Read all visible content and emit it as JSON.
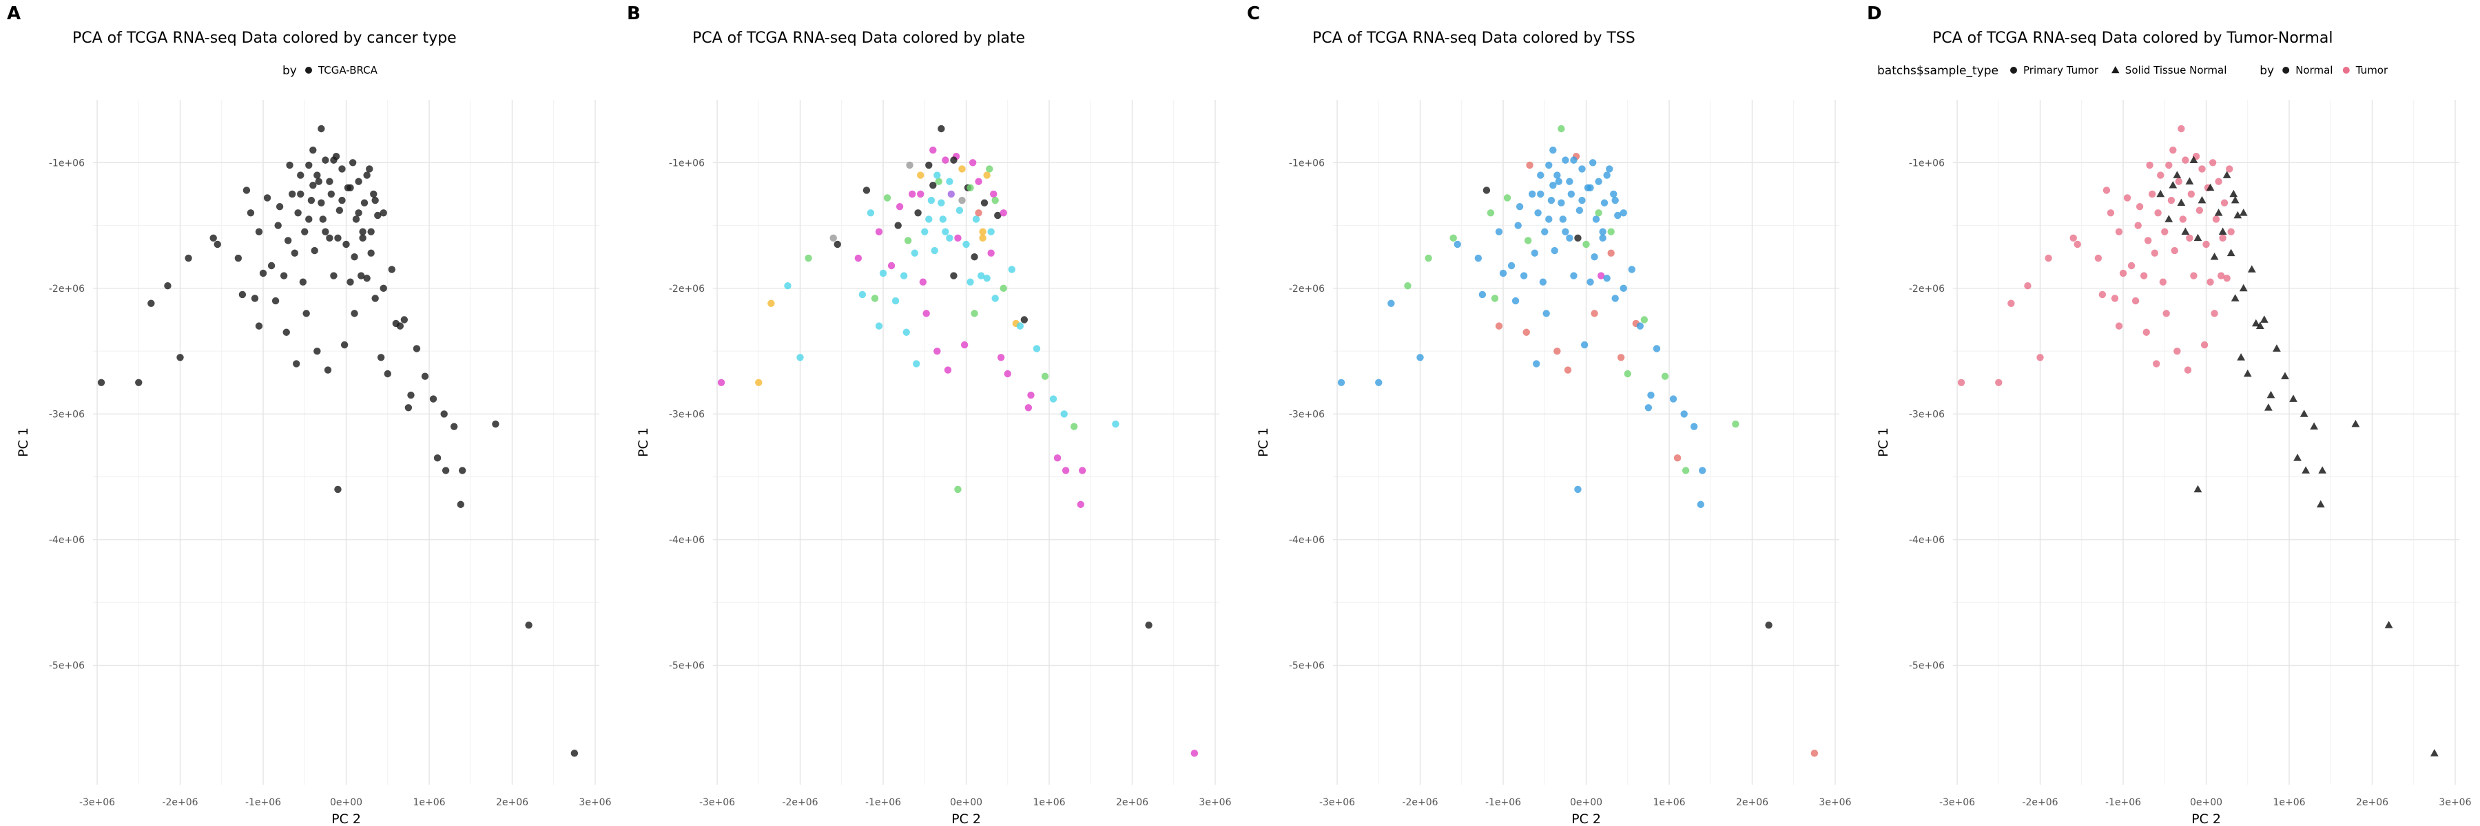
{
  "chart_data": [
    {
      "letter": "A",
      "type": "scatter",
      "title": "PCA of TCGA RNA-seq Data colored by cancer type",
      "xlabel": "PC 2",
      "ylabel": "PC 1",
      "xlim": [
        -3050000.0,
        3050000.0
      ],
      "ylim": [
        -5950000.0,
        -500000.0
      ],
      "x_ticks": [
        -3000000.0,
        -2000000.0,
        -1000000.0,
        0,
        1000000.0,
        2000000.0,
        3000000.0
      ],
      "x_tick_labels": [
        "-3e+06",
        "-2e+06",
        "-1e+06",
        "0e+00",
        "1e+06",
        "2e+06",
        "3e+06"
      ],
      "y_ticks": [
        -1000000.0,
        -2000000.0,
        -3000000.0,
        -4000000.0,
        -5000000.0
      ],
      "y_tick_labels": [
        "-1e+06",
        "-2e+06",
        "-3e+06",
        "-4e+06",
        "-5e+06"
      ],
      "grid": true,
      "legend": {
        "position": "top",
        "groups": [
          {
            "title": "by",
            "entries": [
              {
                "label": "TCGA-BRCA",
                "color": "#1a1a1a",
                "shape": "circle"
              }
            ]
          }
        ]
      },
      "series_colors": [
        "#1a1a1a"
      ],
      "series_shapes": []
    },
    {
      "letter": "B",
      "type": "scatter",
      "title": "PCA of TCGA RNA-seq Data colored by plate",
      "xlabel": "PC 2",
      "ylabel": "PC 1",
      "xlim": [
        -3050000.0,
        3050000.0
      ],
      "ylim": [
        -5950000.0,
        -500000.0
      ],
      "x_ticks": [
        -3000000.0,
        -2000000.0,
        -1000000.0,
        0,
        1000000.0,
        2000000.0,
        3000000.0
      ],
      "x_tick_labels": [
        "-3e+06",
        "-2e+06",
        "-1e+06",
        "0e+00",
        "1e+06",
        "2e+06",
        "3e+06"
      ],
      "y_ticks": [
        -1000000.0,
        -2000000.0,
        -3000000.0,
        -4000000.0,
        -5000000.0
      ],
      "y_tick_labels": [
        "-1e+06",
        "-2e+06",
        "-3e+06",
        "-4e+06",
        "-5e+06"
      ],
      "grid": true,
      "legend": null,
      "series_colors": [
        "#e040c8",
        "#4fd6e8",
        "#1a1a1a",
        "#6fd46f",
        "#f5b933",
        "#999999",
        "#a061e0",
        "#e6706a"
      ],
      "series_shapes": []
    },
    {
      "letter": "C",
      "type": "scatter",
      "title": "PCA of TCGA RNA-seq Data colored by TSS",
      "xlabel": "PC 2",
      "ylabel": "PC 1",
      "xlim": [
        -3050000.0,
        3050000.0
      ],
      "ylim": [
        -5950000.0,
        -500000.0
      ],
      "x_ticks": [
        -3000000.0,
        -2000000.0,
        -1000000.0,
        0,
        1000000.0,
        2000000.0,
        3000000.0
      ],
      "x_tick_labels": [
        "-3e+06",
        "-2e+06",
        "-1e+06",
        "0e+00",
        "1e+06",
        "2e+06",
        "3e+06"
      ],
      "y_ticks": [
        -1000000.0,
        -2000000.0,
        -3000000.0,
        -4000000.0,
        -5000000.0
      ],
      "y_tick_labels": [
        "-1e+06",
        "-2e+06",
        "-3e+06",
        "-4e+06",
        "-5e+06"
      ],
      "grid": true,
      "legend": null,
      "series_colors": [
        "#3a9ee0",
        "#3a9ee0",
        "#3a9ee0",
        "#6fd46f",
        "#e6706a",
        "#1a1a1a",
        "#e040c8",
        "#4fd6e8"
      ],
      "series_shapes": []
    },
    {
      "letter": "D",
      "type": "scatter",
      "title": "PCA of TCGA RNA-seq Data colored by Tumor-Normal",
      "xlabel": "PC 2",
      "ylabel": "PC 1",
      "xlim": [
        -3050000.0,
        3050000.0
      ],
      "ylim": [
        -5950000.0,
        -500000.0
      ],
      "x_ticks": [
        -3000000.0,
        -2000000.0,
        -1000000.0,
        0,
        1000000.0,
        2000000.0,
        3000000.0
      ],
      "x_tick_labels": [
        "-3e+06",
        "-2e+06",
        "-1e+06",
        "0e+00",
        "1e+06",
        "2e+06",
        "3e+06"
      ],
      "y_ticks": [
        -1000000.0,
        -2000000.0,
        -3000000.0,
        -4000000.0,
        -5000000.0
      ],
      "y_tick_labels": [
        "-1e+06",
        "-2e+06",
        "-3e+06",
        "-4e+06",
        "-5e+06"
      ],
      "grid": true,
      "legend": {
        "position": "top",
        "groups": [
          {
            "title": "batchs$sample_type",
            "entries": [
              {
                "label": "Primary Tumor",
                "color": "#1a1a1a",
                "shape": "circle"
              },
              {
                "label": "Solid Tissue Normal",
                "color": "#1a1a1a",
                "shape": "triangle"
              }
            ]
          },
          {
            "title": "by",
            "entries": [
              {
                "label": "Normal",
                "color": "#1a1a1a",
                "shape": "circle"
              },
              {
                "label": "Tumor",
                "color": "#e8708a",
                "shape": "circle"
              }
            ]
          }
        ]
      },
      "series_colors": [
        "#e8708a",
        "#1a1a1a"
      ],
      "series_shapes": [
        "circle",
        "triangle"
      ]
    }
  ],
  "points": [
    [
      -2950000.0,
      -2750000.0,
      0
    ],
    [
      -2500000.0,
      -2750000.0,
      0
    ],
    [
      -2350000.0,
      -2120000.0,
      0
    ],
    [
      -2150000.0,
      -1980000.0,
      0
    ],
    [
      -2000000.0,
      -2550000.0,
      0
    ],
    [
      -1900000.0,
      -1760000.0,
      0
    ],
    [
      -1600000.0,
      -1600000.0,
      0
    ],
    [
      -1550000.0,
      -1650000.0,
      0
    ],
    [
      -1300000.0,
      -1760000.0,
      0
    ],
    [
      -1250000.0,
      -2050000.0,
      0
    ],
    [
      -1200000.0,
      -1220000.0,
      0
    ],
    [
      -1150000.0,
      -1400000.0,
      0
    ],
    [
      -1100000.0,
      -2080000.0,
      0
    ],
    [
      -1050000.0,
      -2300000.0,
      0
    ],
    [
      -1050000.0,
      -1550000.0,
      0
    ],
    [
      -1000000.0,
      -1880000.0,
      0
    ],
    [
      -950000.0,
      -1280000.0,
      0
    ],
    [
      -900000.0,
      -1820000.0,
      0
    ],
    [
      -850000.0,
      -2100000.0,
      0
    ],
    [
      -820000.0,
      -1500000.0,
      0
    ],
    [
      -800000.0,
      -1350000.0,
      0
    ],
    [
      -750000.0,
      -1900000.0,
      0
    ],
    [
      -720000.0,
      -2350000.0,
      0
    ],
    [
      -700000.0,
      -1620000.0,
      0
    ],
    [
      -680000.0,
      -1020000.0,
      0
    ],
    [
      -650000.0,
      -1250000.0,
      0
    ],
    [
      -620000.0,
      -1720000.0,
      0
    ],
    [
      -600000.0,
      -2600000.0,
      0
    ],
    [
      -580000.0,
      -1400000.0,
      0
    ],
    [
      -550000.0,
      -1100000.0,
      0
    ],
    [
      -520000.0,
      -1950000.0,
      0
    ],
    [
      -500000.0,
      -1550000.0,
      0
    ],
    [
      -480000.0,
      -2200000.0,
      0
    ],
    [
      -450000.0,
      -1020000.0,
      0
    ],
    [
      -420000.0,
      -1300000.0,
      0
    ],
    [
      -400000.0,
      -900000.0,
      0
    ],
    [
      -380000.0,
      -1700000.0,
      0
    ],
    [
      -350000.0,
      -2500000.0,
      0
    ],
    [
      -330000.0,
      -1150000.0,
      0
    ],
    [
      -300000.0,
      -730000.0,
      0
    ],
    [
      -280000.0,
      -1450000.0,
      0
    ],
    [
      -250000.0,
      -980000.0,
      0
    ],
    [
      -220000.0,
      -2650000.0,
      0
    ],
    [
      -200000.0,
      -1600000.0,
      0
    ],
    [
      -180000.0,
      -1250000.0,
      0
    ],
    [
      -150000.0,
      -1900000.0,
      0
    ],
    [
      -120000.0,
      -950000.0,
      0
    ],
    [
      -100000.0,
      -3600000.0,
      0
    ],
    [
      -80000.0,
      -1380000.0,
      0
    ],
    [
      -50000.0,
      -1050000.0,
      0
    ],
    [
      -20000.0,
      -2450000.0,
      0
    ],
    [
      0.0,
      -1650000.0,
      0
    ],
    [
      20000.0,
      -1200000.0,
      0
    ],
    [
      50000.0,
      -1950000.0,
      0
    ],
    [
      80000.0,
      -1000000.0,
      0
    ],
    [
      100000.0,
      -2200000.0,
      0
    ],
    [
      120000.0,
      -1450000.0,
      0
    ],
    [
      150000.0,
      -1150000.0,
      0
    ],
    [
      180000.0,
      -1900000.0,
      0
    ],
    [
      200000.0,
      -1600000.0,
      0
    ],
    [
      220000.0,
      -1320000.0,
      0
    ],
    [
      250000.0,
      -1920000.0,
      0
    ],
    [
      280000.0,
      -1050000.0,
      0
    ],
    [
      300000.0,
      -1550000.0,
      0
    ],
    [
      330000.0,
      -1250000.0,
      0
    ],
    [
      350000.0,
      -2080000.0,
      0
    ],
    [
      380000.0,
      -1420000.0,
      0
    ],
    [
      420000.0,
      -2550000.0,
      0
    ],
    [
      450000.0,
      -2000000.0,
      0
    ],
    [
      500000.0,
      -2680000.0,
      0
    ],
    [
      550000.0,
      -1850000.0,
      0
    ],
    [
      600000.0,
      -2280000.0,
      0
    ],
    [
      650000.0,
      -2300000.0,
      0
    ],
    [
      700000.0,
      -2250000.0,
      0
    ],
    [
      750000.0,
      -2950000.0,
      0
    ],
    [
      780000.0,
      -2850000.0,
      0
    ],
    [
      850000.0,
      -2480000.0,
      0
    ],
    [
      950000.0,
      -2700000.0,
      0
    ],
    [
      1050000.0,
      -2880000.0,
      0
    ],
    [
      1100000.0,
      -3350000.0,
      0
    ],
    [
      1180000.0,
      -3000000.0,
      0
    ],
    [
      1200000.0,
      -3450000.0,
      0
    ],
    [
      1300000.0,
      -3100000.0,
      0
    ],
    [
      1380000.0,
      -3720000.0,
      0
    ],
    [
      1400000.0,
      -3450000.0,
      0
    ],
    [
      1800000.0,
      -3080000.0,
      0
    ],
    [
      2200000.0,
      -4680000.0,
      0
    ],
    [
      2750000.0,
      -5700000.0,
      0
    ],
    [
      -550000.0,
      -1250000.0,
      1
    ],
    [
      -350000.0,
      -1100000.0,
      1
    ],
    [
      -150000.0,
      -980000.0,
      1
    ],
    [
      50000.0,
      -1200000.0,
      1
    ],
    [
      250000.0,
      -1100000.0,
      1
    ],
    [
      450000.0,
      -1400000.0,
      1
    ],
    [
      -250000.0,
      -1550000.0,
      1
    ],
    [
      100000.0,
      -1750000.0,
      1
    ],
    [
      -50000.0,
      -1300000.0,
      1
    ],
    [
      300000.0,
      -1720000.0,
      1
    ],
    [
      -450000.0,
      -1450000.0,
      1
    ],
    [
      150000.0,
      -1400000.0,
      1
    ],
    [
      -200000.0,
      -1150000.0,
      1
    ],
    [
      350000.0,
      -1300000.0,
      1
    ],
    [
      -100000.0,
      -1600000.0,
      1
    ],
    [
      200000.0,
      -1550000.0,
      1
    ],
    [
      -300000.0,
      -1320000.0,
      1
    ],
    [
      -400000.0,
      -1180000.0,
      1
    ]
  ],
  "assignments": {
    "B": [
      0,
      4,
      4,
      1,
      1,
      3,
      5,
      2,
      0,
      1,
      2,
      1,
      3,
      1,
      0,
      1,
      3,
      0,
      1,
      2,
      0,
      1,
      1,
      3,
      5,
      0,
      1,
      1,
      2,
      4,
      0,
      1,
      0,
      2,
      1,
      0,
      1,
      0,
      3,
      2,
      1,
      0,
      0,
      1,
      6,
      2,
      0,
      3,
      1,
      4,
      0,
      1,
      2,
      1,
      0,
      3,
      1,
      0,
      1,
      4,
      2,
      1,
      3,
      1,
      0,
      1,
      2,
      0,
      3,
      0,
      1,
      4,
      1,
      2,
      0,
      0,
      1,
      3,
      1,
      0,
      1,
      0,
      3,
      0,
      0,
      1,
      2,
      0,
      0,
      1,
      2,
      3,
      4,
      0,
      1,
      2,
      5,
      0,
      1,
      7,
      1,
      3,
      0,
      4,
      1,
      2
    ],
    "C": [
      1,
      1,
      1,
      3,
      1,
      3,
      3,
      1,
      0,
      1,
      5,
      3,
      3,
      4,
      1,
      1,
      3,
      0,
      1,
      0,
      1,
      1,
      4,
      3,
      4,
      1,
      1,
      0,
      1,
      0,
      1,
      0,
      1,
      0,
      1,
      0,
      1,
      4,
      1,
      3,
      0,
      1,
      4,
      0,
      1,
      1,
      4,
      1,
      1,
      0,
      1,
      3,
      1,
      0,
      1,
      4,
      1,
      1,
      6,
      1,
      1,
      0,
      1,
      3,
      1,
      0,
      1,
      4,
      1,
      3,
      1,
      4,
      1,
      3,
      1,
      1,
      1,
      3,
      1,
      4,
      1,
      3,
      1,
      1,
      1,
      3,
      5,
      4,
      0,
      1,
      0,
      1,
      1,
      0,
      0,
      1,
      0,
      4,
      1,
      3,
      0,
      1,
      5,
      1,
      0,
      1
    ],
    "D": [
      0,
      0,
      0,
      0,
      0,
      0,
      0,
      0,
      0,
      0,
      0,
      0,
      0,
      0,
      0,
      0,
      0,
      0,
      0,
      0,
      0,
      0,
      0,
      0,
      0,
      0,
      0,
      0,
      0,
      0,
      0,
      0,
      0,
      0,
      0,
      0,
      0,
      0,
      0,
      0,
      0,
      0,
      0,
      0,
      0,
      0,
      0,
      1,
      0,
      0,
      0,
      0,
      0,
      0,
      0,
      0,
      0,
      0,
      0,
      0,
      0,
      0,
      0,
      0,
      1,
      1,
      1,
      1,
      1,
      1,
      1,
      1,
      1,
      1,
      1,
      1,
      1,
      1,
      1,
      1,
      1,
      1,
      1,
      1,
      1,
      1,
      1,
      1,
      1,
      1,
      1,
      1,
      1,
      1,
      1,
      1,
      1,
      1,
      1,
      1,
      1,
      1,
      1,
      1,
      1,
      1
    ]
  }
}
